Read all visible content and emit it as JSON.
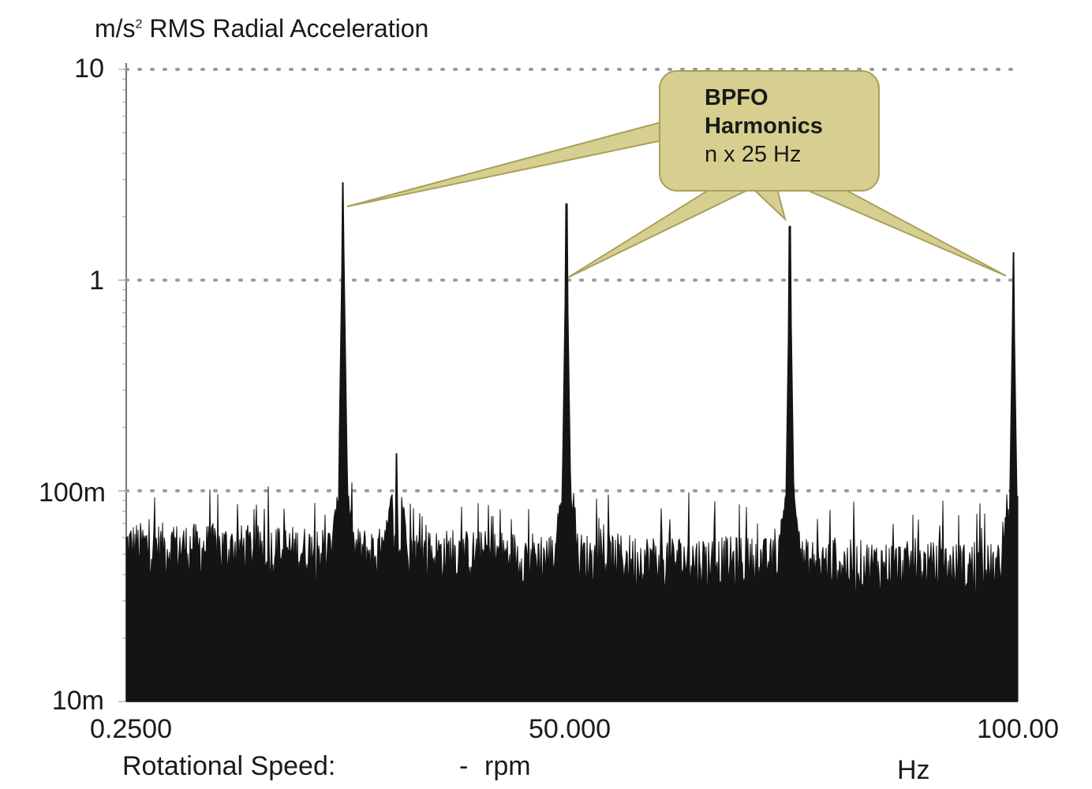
{
  "chart_data": {
    "type": "line",
    "title": "",
    "ylabel_prefix": "m/s",
    "ylabel_sup": "2",
    "ylabel_suffix": " RMS Radial Acceleration",
    "xlabel": "Hz",
    "y_scale": "log",
    "ylim": [
      0.01,
      10
    ],
    "xlim": [
      0.25,
      100
    ],
    "y_ticks": [
      "10",
      "1",
      "100m",
      "10m"
    ],
    "x_ticks": [
      "0.2500",
      "50.000",
      "100.00"
    ],
    "grid": "horizontal dotted",
    "peaks": [
      {
        "x": 24.5,
        "y": 2.9
      },
      {
        "x": 49.5,
        "y": 2.3
      },
      {
        "x": 74.5,
        "y": 1.8
      },
      {
        "x": 99.5,
        "y": 1.35
      },
      {
        "x": 30.5,
        "y": 0.15
      }
    ],
    "series": [
      {
        "values_note_only_in_script": ""
      }
    ],
    "annotation": {
      "line1": "BPFO",
      "line2": "Harmonics",
      "line3": "n x 25 Hz"
    },
    "colors": {
      "spectrum": "#141414",
      "callout_fill": "#d6cf8f",
      "callout_stroke": "#a9a05c",
      "grid": "#9a9a9a"
    }
  },
  "footer": {
    "speed_label": "Rotational Speed:",
    "speed_value": "-",
    "speed_unit": "rpm"
  }
}
